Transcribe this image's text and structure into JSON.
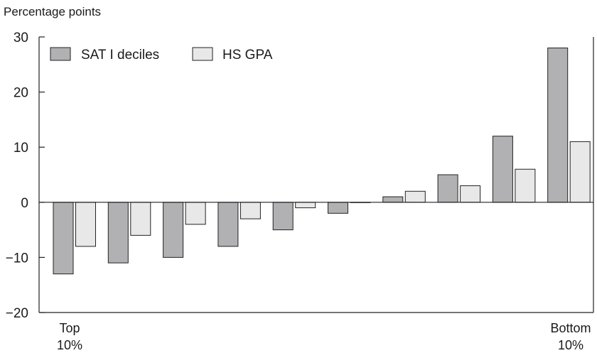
{
  "chart_data": {
    "type": "bar",
    "ylabel": "Percentage points",
    "xlabel": "",
    "title": "",
    "ylim": [
      -20,
      30
    ],
    "yticks": [
      30,
      20,
      10,
      0,
      -10,
      -20
    ],
    "ytick_labels": [
      "30",
      "20",
      "10",
      "0",
      "−10",
      "−20"
    ],
    "categories": [
      "1",
      "2",
      "3",
      "4",
      "5",
      "6",
      "7",
      "8",
      "9",
      "10"
    ],
    "category_labels": {
      "first": [
        "Top",
        "10%"
      ],
      "last": [
        "Bottom",
        "10%"
      ]
    },
    "series": [
      {
        "name": "SAT I deciles",
        "color": "#b1b1b3",
        "values": [
          -13,
          -11,
          -10,
          -8,
          -5,
          -2,
          1,
          5,
          12,
          28
        ]
      },
      {
        "name": "HS GPA",
        "color": "#e8e8e8",
        "values": [
          -8,
          -6,
          -4,
          -3,
          -1,
          0,
          2,
          3,
          6,
          11
        ]
      }
    ],
    "legend_position": "top-left",
    "grid": false
  }
}
